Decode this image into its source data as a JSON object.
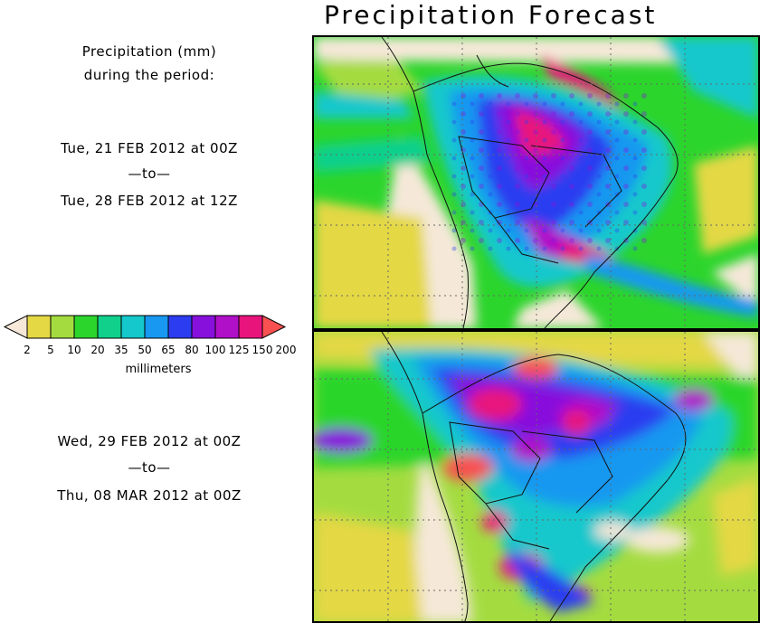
{
  "title": "Precipitation Forecast",
  "left": {
    "heading_line1": "Precipitation (mm)",
    "heading_line2": "during the period:",
    "period1": {
      "start": "Tue, 21 FEB 2012 at 00Z",
      "sep": "—to—",
      "end": "Tue, 28 FEB 2012 at 12Z"
    },
    "period2": {
      "start": "Wed, 29 FEB 2012 at 00Z",
      "sep": "—to—",
      "end": "Thu, 08 MAR 2012 at 00Z"
    }
  },
  "legend": {
    "unit_label": "millimeters",
    "ticks": [
      "2",
      "5",
      "10",
      "20",
      "35",
      "50",
      "65",
      "80",
      "100",
      "125",
      "150",
      "200"
    ],
    "colors": [
      "#f5e8d8",
      "#e4d844",
      "#a4dc40",
      "#2cd52c",
      "#10d08c",
      "#14c8cc",
      "#1898f0",
      "#2c3cf0",
      "#8810dc",
      "#b010c8",
      "#e8147c",
      "#f85050"
    ]
  }
}
